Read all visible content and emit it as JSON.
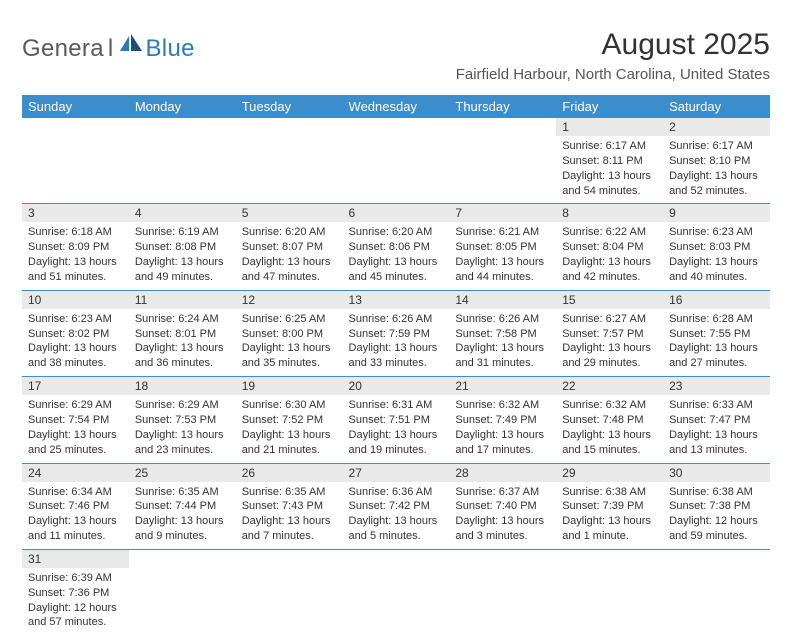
{
  "logo": {
    "general": "Genera",
    "l": "l",
    "blue": "Blue"
  },
  "title": "August 2025",
  "location": "Fairfield Harbour, North Carolina, United States",
  "dow": [
    "Sunday",
    "Monday",
    "Tuesday",
    "Wednesday",
    "Thursday",
    "Friday",
    "Saturday"
  ],
  "colors": {
    "header_bg": "#3c8dcc",
    "daynum_bg": "#e9e9e9",
    "rule": "#3c8dcc"
  },
  "weeks": [
    [
      {
        "n": "",
        "sr": "",
        "ss": "",
        "dl": "",
        "empty": true
      },
      {
        "n": "",
        "sr": "",
        "ss": "",
        "dl": "",
        "empty": true
      },
      {
        "n": "",
        "sr": "",
        "ss": "",
        "dl": "",
        "empty": true
      },
      {
        "n": "",
        "sr": "",
        "ss": "",
        "dl": "",
        "empty": true
      },
      {
        "n": "",
        "sr": "",
        "ss": "",
        "dl": "",
        "empty": true
      },
      {
        "n": "1",
        "sr": "Sunrise: 6:17 AM",
        "ss": "Sunset: 8:11 PM",
        "dl": "Daylight: 13 hours and 54 minutes."
      },
      {
        "n": "2",
        "sr": "Sunrise: 6:17 AM",
        "ss": "Sunset: 8:10 PM",
        "dl": "Daylight: 13 hours and 52 minutes."
      }
    ],
    [
      {
        "n": "3",
        "sr": "Sunrise: 6:18 AM",
        "ss": "Sunset: 8:09 PM",
        "dl": "Daylight: 13 hours and 51 minutes."
      },
      {
        "n": "4",
        "sr": "Sunrise: 6:19 AM",
        "ss": "Sunset: 8:08 PM",
        "dl": "Daylight: 13 hours and 49 minutes."
      },
      {
        "n": "5",
        "sr": "Sunrise: 6:20 AM",
        "ss": "Sunset: 8:07 PM",
        "dl": "Daylight: 13 hours and 47 minutes."
      },
      {
        "n": "6",
        "sr": "Sunrise: 6:20 AM",
        "ss": "Sunset: 8:06 PM",
        "dl": "Daylight: 13 hours and 45 minutes."
      },
      {
        "n": "7",
        "sr": "Sunrise: 6:21 AM",
        "ss": "Sunset: 8:05 PM",
        "dl": "Daylight: 13 hours and 44 minutes."
      },
      {
        "n": "8",
        "sr": "Sunrise: 6:22 AM",
        "ss": "Sunset: 8:04 PM",
        "dl": "Daylight: 13 hours and 42 minutes."
      },
      {
        "n": "9",
        "sr": "Sunrise: 6:23 AM",
        "ss": "Sunset: 8:03 PM",
        "dl": "Daylight: 13 hours and 40 minutes."
      }
    ],
    [
      {
        "n": "10",
        "sr": "Sunrise: 6:23 AM",
        "ss": "Sunset: 8:02 PM",
        "dl": "Daylight: 13 hours and 38 minutes."
      },
      {
        "n": "11",
        "sr": "Sunrise: 6:24 AM",
        "ss": "Sunset: 8:01 PM",
        "dl": "Daylight: 13 hours and 36 minutes."
      },
      {
        "n": "12",
        "sr": "Sunrise: 6:25 AM",
        "ss": "Sunset: 8:00 PM",
        "dl": "Daylight: 13 hours and 35 minutes."
      },
      {
        "n": "13",
        "sr": "Sunrise: 6:26 AM",
        "ss": "Sunset: 7:59 PM",
        "dl": "Daylight: 13 hours and 33 minutes."
      },
      {
        "n": "14",
        "sr": "Sunrise: 6:26 AM",
        "ss": "Sunset: 7:58 PM",
        "dl": "Daylight: 13 hours and 31 minutes."
      },
      {
        "n": "15",
        "sr": "Sunrise: 6:27 AM",
        "ss": "Sunset: 7:57 PM",
        "dl": "Daylight: 13 hours and 29 minutes."
      },
      {
        "n": "16",
        "sr": "Sunrise: 6:28 AM",
        "ss": "Sunset: 7:55 PM",
        "dl": "Daylight: 13 hours and 27 minutes."
      }
    ],
    [
      {
        "n": "17",
        "sr": "Sunrise: 6:29 AM",
        "ss": "Sunset: 7:54 PM",
        "dl": "Daylight: 13 hours and 25 minutes."
      },
      {
        "n": "18",
        "sr": "Sunrise: 6:29 AM",
        "ss": "Sunset: 7:53 PM",
        "dl": "Daylight: 13 hours and 23 minutes."
      },
      {
        "n": "19",
        "sr": "Sunrise: 6:30 AM",
        "ss": "Sunset: 7:52 PM",
        "dl": "Daylight: 13 hours and 21 minutes."
      },
      {
        "n": "20",
        "sr": "Sunrise: 6:31 AM",
        "ss": "Sunset: 7:51 PM",
        "dl": "Daylight: 13 hours and 19 minutes."
      },
      {
        "n": "21",
        "sr": "Sunrise: 6:32 AM",
        "ss": "Sunset: 7:49 PM",
        "dl": "Daylight: 13 hours and 17 minutes."
      },
      {
        "n": "22",
        "sr": "Sunrise: 6:32 AM",
        "ss": "Sunset: 7:48 PM",
        "dl": "Daylight: 13 hours and 15 minutes."
      },
      {
        "n": "23",
        "sr": "Sunrise: 6:33 AM",
        "ss": "Sunset: 7:47 PM",
        "dl": "Daylight: 13 hours and 13 minutes."
      }
    ],
    [
      {
        "n": "24",
        "sr": "Sunrise: 6:34 AM",
        "ss": "Sunset: 7:46 PM",
        "dl": "Daylight: 13 hours and 11 minutes."
      },
      {
        "n": "25",
        "sr": "Sunrise: 6:35 AM",
        "ss": "Sunset: 7:44 PM",
        "dl": "Daylight: 13 hours and 9 minutes."
      },
      {
        "n": "26",
        "sr": "Sunrise: 6:35 AM",
        "ss": "Sunset: 7:43 PM",
        "dl": "Daylight: 13 hours and 7 minutes."
      },
      {
        "n": "27",
        "sr": "Sunrise: 6:36 AM",
        "ss": "Sunset: 7:42 PM",
        "dl": "Daylight: 13 hours and 5 minutes."
      },
      {
        "n": "28",
        "sr": "Sunrise: 6:37 AM",
        "ss": "Sunset: 7:40 PM",
        "dl": "Daylight: 13 hours and 3 minutes."
      },
      {
        "n": "29",
        "sr": "Sunrise: 6:38 AM",
        "ss": "Sunset: 7:39 PM",
        "dl": "Daylight: 13 hours and 1 minute."
      },
      {
        "n": "30",
        "sr": "Sunrise: 6:38 AM",
        "ss": "Sunset: 7:38 PM",
        "dl": "Daylight: 12 hours and 59 minutes."
      }
    ],
    [
      {
        "n": "31",
        "sr": "Sunrise: 6:39 AM",
        "ss": "Sunset: 7:36 PM",
        "dl": "Daylight: 12 hours and 57 minutes."
      },
      {
        "n": "",
        "sr": "",
        "ss": "",
        "dl": "",
        "empty": true
      },
      {
        "n": "",
        "sr": "",
        "ss": "",
        "dl": "",
        "empty": true
      },
      {
        "n": "",
        "sr": "",
        "ss": "",
        "dl": "",
        "empty": true
      },
      {
        "n": "",
        "sr": "",
        "ss": "",
        "dl": "",
        "empty": true
      },
      {
        "n": "",
        "sr": "",
        "ss": "",
        "dl": "",
        "empty": true
      },
      {
        "n": "",
        "sr": "",
        "ss": "",
        "dl": "",
        "empty": true
      }
    ]
  ]
}
